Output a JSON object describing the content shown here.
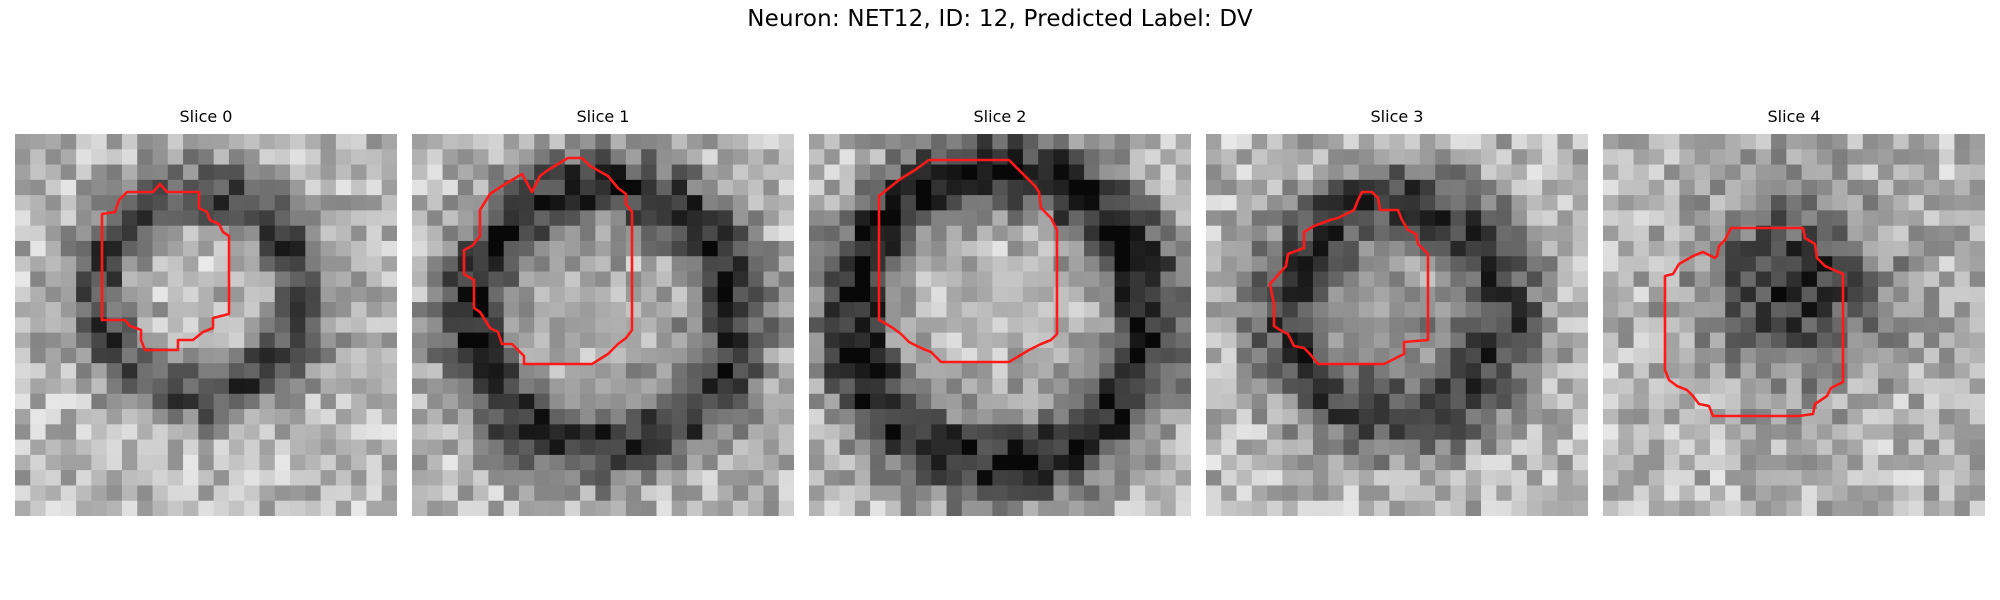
{
  "figure": {
    "title": "Neuron: NET12, ID: 12, Predicted Label: DV",
    "outline_color": "#ff1a1a"
  },
  "slices": [
    {
      "title": "Slice 0"
    },
    {
      "title": "Slice 1"
    },
    {
      "title": "Slice 2"
    },
    {
      "title": "Slice 3"
    },
    {
      "title": "Slice 4"
    }
  ]
}
